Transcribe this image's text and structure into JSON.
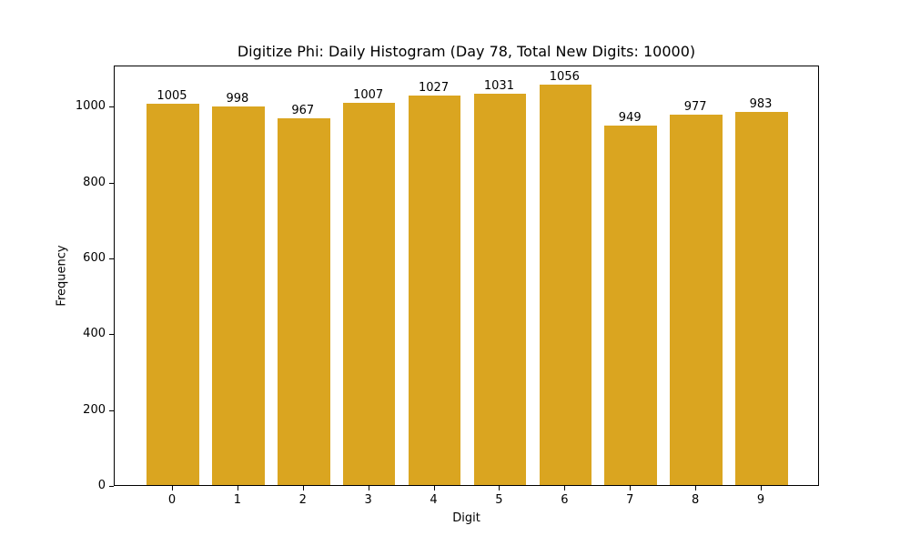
{
  "chart_data": {
    "type": "bar",
    "title": "Digitize Phi: Daily Histogram (Day 78, Total New Digits: 10000)",
    "xlabel": "Digit",
    "ylabel": "Frequency",
    "categories": [
      "0",
      "1",
      "2",
      "3",
      "4",
      "5",
      "6",
      "7",
      "8",
      "9"
    ],
    "values": [
      1005,
      998,
      967,
      1007,
      1027,
      1031,
      1056,
      949,
      977,
      983
    ],
    "bar_labels": [
      "1005",
      "998",
      "967",
      "1007",
      "1027",
      "1031",
      "1056",
      "949",
      "977",
      "983"
    ],
    "yticks": [
      "0",
      "200",
      "400",
      "600",
      "800",
      "1000"
    ],
    "ylim": [
      0,
      1108.8
    ],
    "grid": false,
    "legend": null,
    "bar_color": "#DAA520"
  }
}
